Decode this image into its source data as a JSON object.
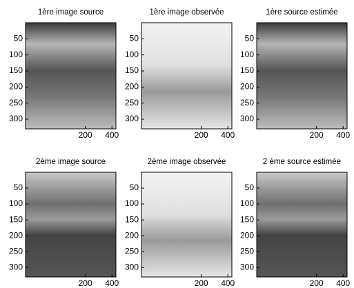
{
  "chart_data": [
    {
      "type": "image",
      "title": "1ère image source",
      "xlim": [
        -250,
        430
      ],
      "ylim": [
        0,
        330
      ],
      "xticks": [
        200,
        400
      ],
      "yticks": [
        50,
        100,
        150,
        200,
        250,
        300
      ]
    },
    {
      "type": "image",
      "title": "1ère image observée",
      "xlim": [
        -250,
        430
      ],
      "ylim": [
        0,
        330
      ],
      "xticks": [
        200,
        400
      ],
      "yticks": [
        50,
        100,
        150,
        200,
        250,
        300
      ]
    },
    {
      "type": "image",
      "title": "1ère source estimée",
      "xlim": [
        -250,
        430
      ],
      "ylim": [
        0,
        330
      ],
      "xticks": [
        200,
        400
      ],
      "yticks": [
        50,
        100,
        150,
        200,
        250,
        300
      ]
    },
    {
      "type": "image",
      "title": "2ème image source",
      "xlim": [
        -250,
        430
      ],
      "ylim": [
        0,
        330
      ],
      "xticks": [
        200,
        400
      ],
      "yticks": [
        50,
        100,
        150,
        200,
        250,
        300
      ]
    },
    {
      "type": "image",
      "title": "2ème image observée",
      "xlim": [
        -250,
        430
      ],
      "ylim": [
        0,
        330
      ],
      "xticks": [
        200,
        400
      ],
      "yticks": [
        50,
        100,
        150,
        200,
        250,
        300
      ]
    },
    {
      "type": "image",
      "title": "2 ème source estimée",
      "xlim": [
        -250,
        430
      ],
      "ylim": [
        0,
        330
      ],
      "xticks": [
        200,
        400
      ],
      "yticks": [
        50,
        100,
        150,
        200,
        250,
        300
      ]
    }
  ]
}
